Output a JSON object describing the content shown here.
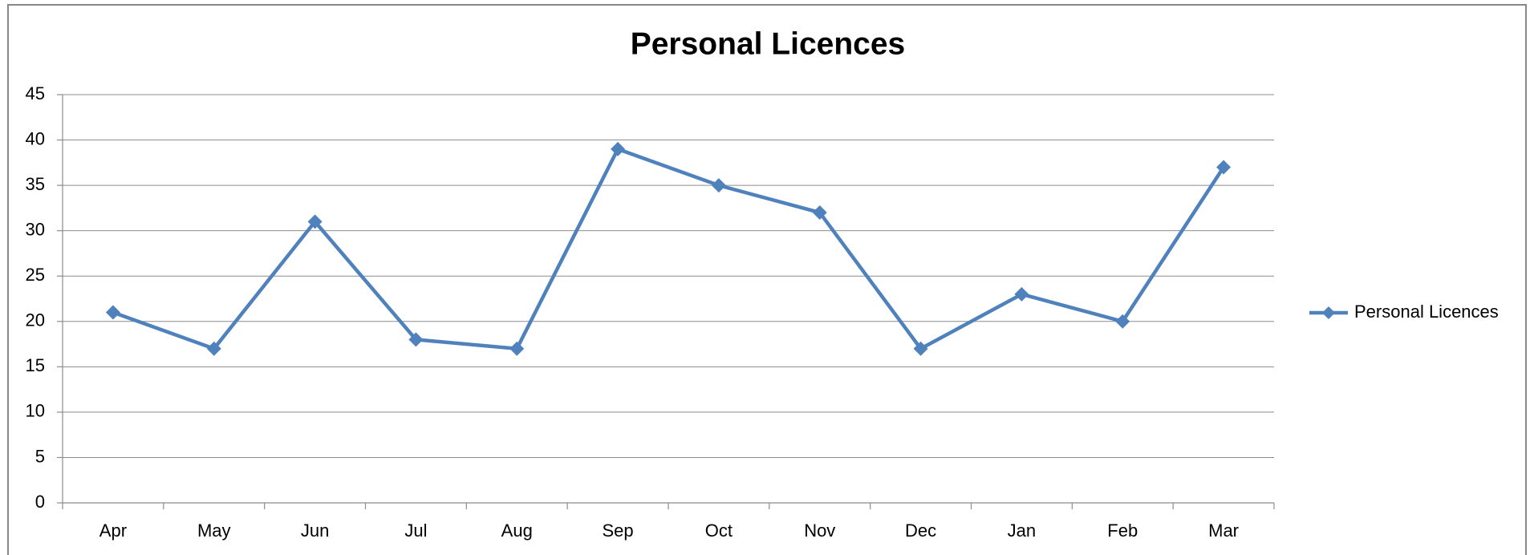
{
  "chart_data": {
    "type": "line",
    "title": "Personal Licences",
    "categories": [
      "Apr",
      "May",
      "Jun",
      "Jul",
      "Aug",
      "Sep",
      "Oct",
      "Nov",
      "Dec",
      "Jan",
      "Feb",
      "Mar"
    ],
    "series": [
      {
        "name": "Personal Licences",
        "color": "#4f81bd",
        "values": [
          21,
          17,
          31,
          18,
          17,
          39,
          35,
          32,
          17,
          23,
          20,
          37
        ]
      }
    ],
    "ylim": [
      0,
      45
    ],
    "yticks": [
      0,
      5,
      10,
      15,
      20,
      25,
      30,
      35,
      40,
      45
    ],
    "grid": true,
    "legend": "right"
  }
}
